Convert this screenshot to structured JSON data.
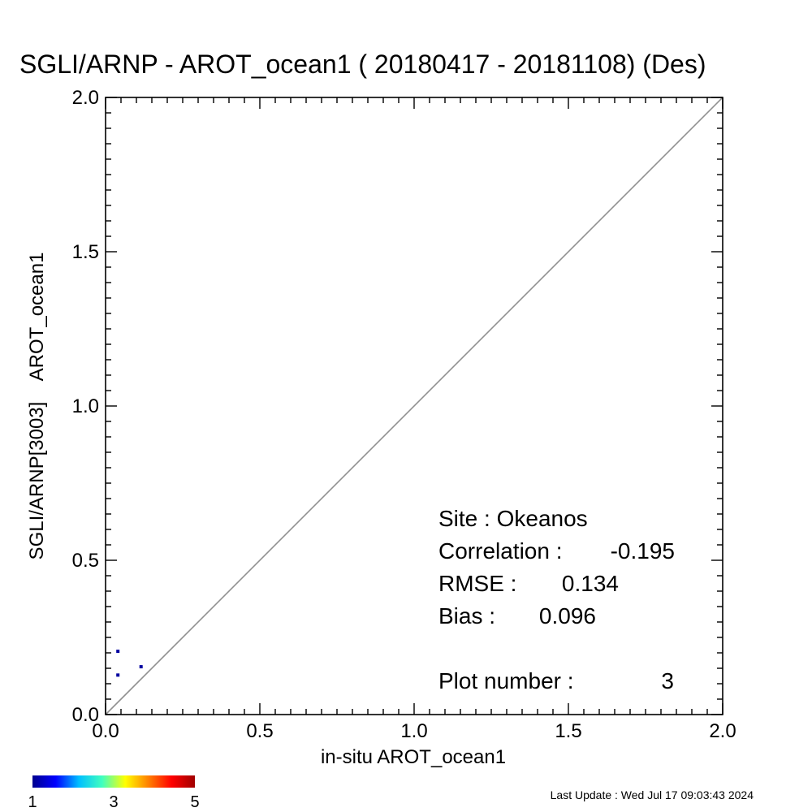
{
  "chart_data": {
    "type": "scatter",
    "title": "SGLI/ARNP - AROT_ocean1 ( 20180417 - 20181108) (Des)",
    "xlabel": "in-situ AROT_ocean1",
    "ylabel": "SGLI/ARNP[3003]    AROT_ocean1",
    "xlim": [
      0.0,
      2.0
    ],
    "ylim": [
      0.0,
      2.0
    ],
    "x_ticks": [
      "0.0",
      "0.5",
      "1.0",
      "1.5",
      "2.0"
    ],
    "y_ticks": [
      "0.0",
      "0.5",
      "1.0",
      "1.5",
      "2.0"
    ],
    "one_to_one_line": true,
    "grid": false,
    "points": [
      {
        "x": 0.04,
        "y": 0.205
      },
      {
        "x": 0.04,
        "y": 0.128
      },
      {
        "x": 0.115,
        "y": 0.155
      }
    ],
    "point_color": "#0000a0",
    "line_color": "#909090",
    "stats": {
      "site_label": "Site : Okeanos",
      "correlation_label": "Correlation :",
      "correlation_value": "-0.195",
      "rmse_label": "RMSE :",
      "rmse_value": "0.134",
      "bias_label": "Bias :",
      "bias_value": "0.096",
      "plot_number_label": "Plot number :",
      "plot_number_value": "3"
    },
    "colorbar": {
      "ticks": [
        "1",
        "3",
        "5"
      ],
      "colors": [
        "#00008f",
        "#0000ff",
        "#00bfff",
        "#40ffbf",
        "#ffff00",
        "#ff8000",
        "#ff0000",
        "#a00000"
      ]
    }
  },
  "footer": {
    "last_update": "Last Update : Wed Jul 17 09:03:43 2024"
  }
}
